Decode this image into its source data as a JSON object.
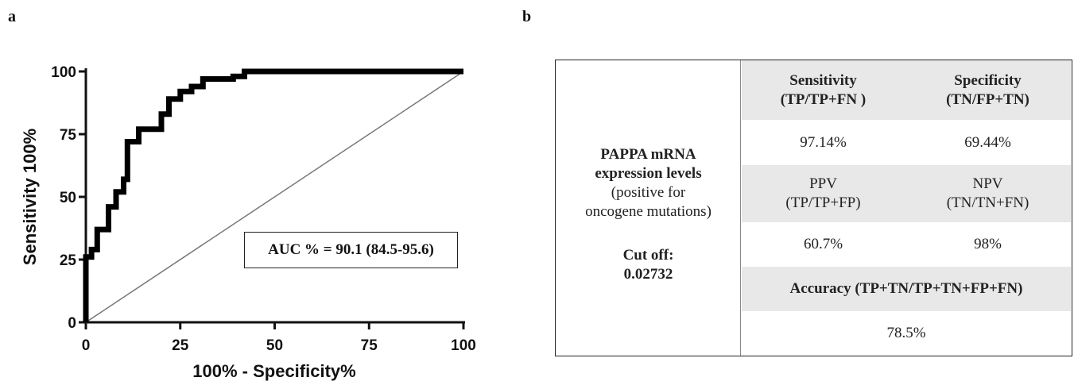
{
  "panels": {
    "a": "a",
    "b": "b"
  },
  "chart_data": {
    "type": "line",
    "xlabel": "100% - Specificity%",
    "ylabel": "Sensitivity 100%",
    "xlim": [
      0,
      100
    ],
    "ylim": [
      0,
      100
    ],
    "xticks": [
      "0",
      "25",
      "50",
      "75",
      "100"
    ],
    "yticks": [
      "0",
      "25",
      "50",
      "75",
      "100"
    ],
    "annotation": "AUC % = 90.1 (84.5-95.6)",
    "series": [
      {
        "x": [
          0,
          0,
          1.5,
          1.5,
          3,
          3,
          6,
          6,
          8,
          8,
          10,
          10,
          11,
          11,
          14,
          14,
          17,
          17,
          20,
          20,
          22,
          22,
          25,
          25,
          28,
          28,
          31,
          31,
          39,
          39,
          42,
          42,
          100
        ],
        "y": [
          0,
          26,
          26,
          29,
          29,
          37,
          37,
          46,
          46,
          52,
          52,
          57,
          57,
          72,
          72,
          77,
          77,
          77,
          77,
          83,
          83,
          89,
          89,
          92,
          92,
          94,
          94,
          97,
          97,
          98,
          98,
          100,
          100
        ]
      },
      {
        "x": [
          0,
          100
        ],
        "y": [
          0,
          100
        ]
      }
    ]
  },
  "table": {
    "left": {
      "line1": "PAPPA mRNA",
      "line2": "expression levels",
      "line3": "(positive for",
      "line4": "oncogene mutations)",
      "cut_label": "Cut off:",
      "cut_value": "0.02732"
    },
    "sens_title": "Sensitivity",
    "sens_formula": "(TP/TP+FN )",
    "spec_title": "Specificity",
    "spec_formula": "(TN/FP+TN)",
    "sens_value": "97.14%",
    "spec_value": "69.44%",
    "ppv_title": "PPV",
    "ppv_formula": "(TP/TP+FP)",
    "npv_title": "NPV",
    "npv_formula": "(TN/TN+FN)",
    "ppv_value": "60.7%",
    "npv_value": "98%",
    "acc_title": "Accuracy  (TP+TN/TP+TN+FP+FN)",
    "acc_value": "78.5%"
  }
}
